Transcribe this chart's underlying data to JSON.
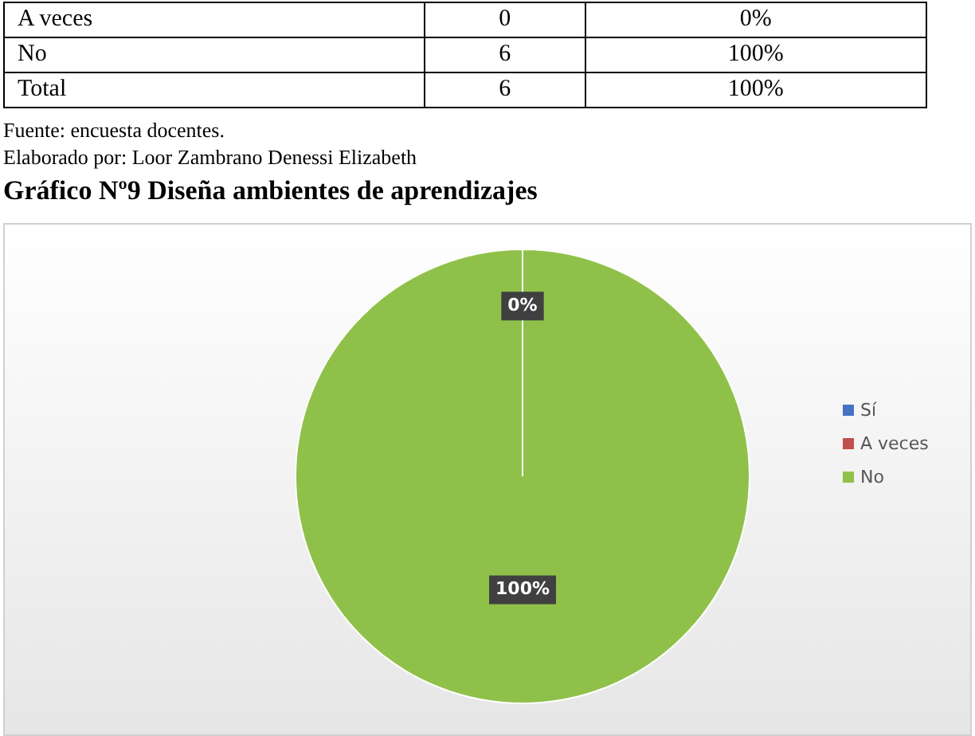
{
  "chart_data": {
    "type": "pie",
    "title": "Gráfico Nº9 Diseña ambientes de aprendizajes",
    "categories": [
      "Sí",
      "A veces",
      "No"
    ],
    "values": [
      0,
      0,
      100
    ],
    "colors": [
      "#4472c4",
      "#c0504d",
      "#8fc14a"
    ],
    "value_labels": [
      "0%",
      null,
      "100%"
    ],
    "legend": "right",
    "annotations": [
      "A veces",
      "0",
      "0%",
      "No",
      "6",
      "100%",
      "Total",
      "6",
      "100%",
      "Fuente: encuesta docentes.",
      "Elaborado por: Loor Zambrano Denessi Elizabeth"
    ]
  }
}
